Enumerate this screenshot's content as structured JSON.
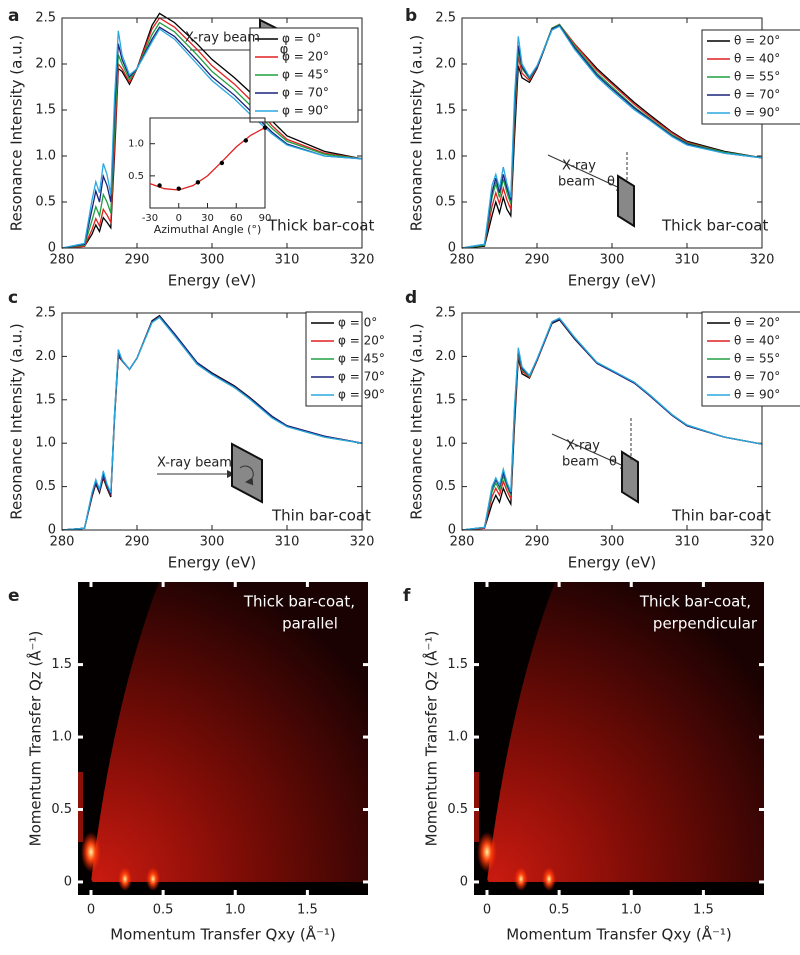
{
  "chart_data": [
    {
      "type": "line",
      "panel_label": "a",
      "x_label": "Energy (eV)",
      "y_label": "Resonance Intensity (a.u.)",
      "x": [
        280,
        283,
        284,
        284.5,
        285,
        285.5,
        286,
        286.5,
        287,
        287.5,
        288,
        289,
        290,
        292,
        293,
        295,
        298,
        300,
        303,
        305,
        308,
        310,
        315,
        320
      ],
      "series": [
        {
          "name": "φ = 0°",
          "color": "#000000",
          "values": [
            0,
            0.02,
            0.15,
            0.25,
            0.18,
            0.33,
            0.28,
            0.22,
            1.0,
            1.95,
            1.92,
            1.78,
            1.95,
            2.42,
            2.55,
            2.45,
            2.22,
            2.05,
            1.85,
            1.7,
            1.38,
            1.22,
            1.05,
            0.97
          ]
        },
        {
          "name": "φ = 20°",
          "color": "#e02020",
          "values": [
            0,
            0.02,
            0.2,
            0.32,
            0.24,
            0.42,
            0.36,
            0.28,
            1.1,
            2.0,
            1.95,
            1.8,
            1.95,
            2.38,
            2.5,
            2.4,
            2.16,
            1.98,
            1.78,
            1.62,
            1.33,
            1.18,
            1.03,
            0.97
          ]
        },
        {
          "name": "φ = 45°",
          "color": "#20a040",
          "values": [
            0,
            0.03,
            0.3,
            0.45,
            0.35,
            0.58,
            0.5,
            0.38,
            1.3,
            2.1,
            2.0,
            1.83,
            1.95,
            2.32,
            2.45,
            2.35,
            2.1,
            1.92,
            1.72,
            1.56,
            1.3,
            1.16,
            1.02,
            0.97
          ]
        },
        {
          "name": "φ = 70°",
          "color": "#1a237e",
          "values": [
            0,
            0.04,
            0.42,
            0.62,
            0.5,
            0.78,
            0.68,
            0.5,
            1.5,
            2.22,
            2.05,
            1.86,
            1.95,
            2.27,
            2.4,
            2.3,
            2.04,
            1.86,
            1.66,
            1.5,
            1.26,
            1.13,
            1.0,
            0.97
          ]
        },
        {
          "name": "φ = 90°",
          "color": "#29a8e0",
          "values": [
            0,
            0.05,
            0.52,
            0.72,
            0.6,
            0.92,
            0.8,
            0.58,
            1.62,
            2.36,
            2.1,
            1.88,
            1.95,
            2.24,
            2.38,
            2.27,
            2.0,
            1.82,
            1.62,
            1.46,
            1.24,
            1.12,
            1.0,
            0.97
          ]
        }
      ],
      "xlim": [
        280,
        320
      ],
      "ylim": [
        0,
        2.5
      ],
      "xticks": [
        280,
        290,
        300,
        310,
        320
      ],
      "yticks": [
        0,
        0.5,
        {
          "value": 1,
          "label": "1.0"
        },
        1.5,
        {
          "value": 2,
          "label": "2.0"
        },
        2.5
      ],
      "annotations": [
        "X-ray beam",
        "φ",
        "Thick bar-coat"
      ],
      "inset": {
        "type": "scatter",
        "x_label": "Azimuthal Angle (°)",
        "x": [
          -20,
          0,
          20,
          45,
          70,
          90
        ],
        "values": [
          0.35,
          0.3,
          0.4,
          0.7,
          1.05,
          1.25
        ],
        "color": "#000000",
        "fit": {
          "x": [
            -30,
            -15,
            0,
            15,
            30,
            45,
            60,
            75,
            90
          ],
          "values": [
            0.38,
            0.3,
            0.28,
            0.35,
            0.5,
            0.72,
            0.95,
            1.13,
            1.25
          ],
          "color": "#e02020"
        },
        "xlim": [
          -30,
          90
        ],
        "ylim": [
          0,
          1.4
        ],
        "xticks": [
          -30,
          0,
          30,
          60,
          90
        ],
        "yticks": [
          0.5,
          {
            "value": 1,
            "label": "1.0"
          }
        ]
      }
    },
    {
      "type": "line",
      "panel_label": "b",
      "x_label": "Energy (eV)",
      "y_label": "Resonance Intensity (a.u.)",
      "x": [
        280,
        283,
        284,
        284.5,
        285,
        285.5,
        286,
        286.5,
        287,
        287.5,
        288,
        289,
        290,
        292,
        293,
        295,
        298,
        300,
        303,
        305,
        308,
        310,
        315,
        320
      ],
      "series": [
        {
          "name": "θ = 20°",
          "color": "#000000",
          "values": [
            0,
            0.02,
            0.35,
            0.5,
            0.38,
            0.55,
            0.42,
            0.35,
            1.2,
            1.98,
            1.85,
            1.8,
            1.95,
            2.38,
            2.42,
            2.22,
            1.95,
            1.8,
            1.58,
            1.45,
            1.26,
            1.16,
            1.05,
            0.98
          ]
        },
        {
          "name": "θ = 40°",
          "color": "#e02020",
          "values": [
            0,
            0.03,
            0.45,
            0.6,
            0.48,
            0.65,
            0.52,
            0.42,
            1.35,
            2.08,
            1.9,
            1.82,
            1.96,
            2.39,
            2.43,
            2.22,
            1.93,
            1.78,
            1.56,
            1.43,
            1.25,
            1.15,
            1.04,
            0.98
          ]
        },
        {
          "name": "θ = 55°",
          "color": "#20a040",
          "values": [
            0,
            0.03,
            0.55,
            0.7,
            0.55,
            0.75,
            0.6,
            0.48,
            1.45,
            2.15,
            1.95,
            1.84,
            1.97,
            2.39,
            2.43,
            2.2,
            1.9,
            1.75,
            1.53,
            1.41,
            1.23,
            1.14,
            1.04,
            0.98
          ]
        },
        {
          "name": "θ = 70°",
          "color": "#1a237e",
          "values": [
            0,
            0.04,
            0.6,
            0.76,
            0.6,
            0.8,
            0.65,
            0.52,
            1.55,
            2.2,
            1.97,
            1.85,
            1.97,
            2.38,
            2.42,
            2.18,
            1.88,
            1.73,
            1.52,
            1.4,
            1.22,
            1.13,
            1.03,
            0.98
          ]
        },
        {
          "name": "θ = 90°",
          "color": "#29a8e0",
          "values": [
            0,
            0.04,
            0.68,
            0.8,
            0.65,
            0.88,
            0.7,
            0.55,
            1.65,
            2.3,
            2.0,
            1.86,
            1.98,
            2.37,
            2.41,
            2.16,
            1.86,
            1.71,
            1.5,
            1.39,
            1.21,
            1.12,
            1.03,
            0.98
          ]
        }
      ],
      "xlim": [
        280,
        320
      ],
      "ylim": [
        0,
        2.5
      ],
      "xticks": [
        280,
        290,
        300,
        310,
        320
      ],
      "yticks": [
        0,
        0.5,
        {
          "value": 1,
          "label": "1.0"
        },
        1.5,
        {
          "value": 2,
          "label": "2.0"
        },
        2.5
      ],
      "annotations": [
        "X-ray",
        "beam",
        "θ",
        "Thick bar-coat"
      ]
    },
    {
      "type": "line",
      "panel_label": "c",
      "x_label": "Energy (eV)",
      "y_label": "Resonance Intensity (a.u.)",
      "x": [
        280,
        283,
        284,
        284.5,
        285,
        285.5,
        286,
        286.5,
        287,
        287.5,
        288,
        289,
        290,
        292,
        293,
        295,
        298,
        300,
        303,
        305,
        308,
        310,
        315,
        320
      ],
      "series": [
        {
          "name": "φ = 0°",
          "color": "#000000",
          "values": [
            0,
            0.02,
            0.38,
            0.53,
            0.43,
            0.6,
            0.48,
            0.38,
            1.28,
            2.0,
            1.95,
            1.85,
            1.98,
            2.41,
            2.47,
            2.26,
            1.93,
            1.81,
            1.66,
            1.53,
            1.31,
            1.2,
            1.08,
            1.0
          ]
        },
        {
          "name": "φ = 20°",
          "color": "#e02020",
          "values": [
            0,
            0.02,
            0.4,
            0.55,
            0.45,
            0.62,
            0.5,
            0.4,
            1.3,
            2.02,
            1.95,
            1.85,
            1.98,
            2.4,
            2.46,
            2.25,
            1.92,
            1.8,
            1.65,
            1.52,
            1.3,
            1.2,
            1.08,
            1.0
          ]
        },
        {
          "name": "φ = 45°",
          "color": "#20a040",
          "values": [
            0,
            0.02,
            0.42,
            0.57,
            0.46,
            0.66,
            0.52,
            0.42,
            1.32,
            2.06,
            1.96,
            1.85,
            1.98,
            2.39,
            2.45,
            2.24,
            1.91,
            1.79,
            1.64,
            1.51,
            1.3,
            1.19,
            1.07,
            1.0
          ]
        },
        {
          "name": "φ = 70°",
          "color": "#1a237e",
          "values": [
            0,
            0.02,
            0.41,
            0.56,
            0.45,
            0.64,
            0.51,
            0.41,
            1.31,
            2.04,
            1.95,
            1.85,
            1.98,
            2.4,
            2.46,
            2.26,
            1.93,
            1.8,
            1.65,
            1.52,
            1.31,
            1.2,
            1.08,
            1.0
          ]
        },
        {
          "name": "φ = 90°",
          "color": "#29a8e0",
          "values": [
            0,
            0.02,
            0.43,
            0.58,
            0.47,
            0.68,
            0.53,
            0.43,
            1.33,
            2.08,
            1.96,
            1.85,
            1.98,
            2.39,
            2.45,
            2.24,
            1.91,
            1.79,
            1.64,
            1.51,
            1.29,
            1.19,
            1.07,
            1.0
          ]
        }
      ],
      "xlim": [
        280,
        320
      ],
      "ylim": [
        0,
        2.5
      ],
      "xticks": [
        280,
        290,
        300,
        310,
        320
      ],
      "yticks": [
        0,
        0.5,
        {
          "value": 1,
          "label": "1.0"
        },
        1.5,
        {
          "value": 2,
          "label": "2.0"
        },
        2.5
      ],
      "annotations": [
        "X-ray beam",
        "Thin bar-coat"
      ]
    },
    {
      "type": "line",
      "panel_label": "d",
      "x_label": "Energy (eV)",
      "y_label": "Resonance Intensity (a.u.)",
      "x": [
        280,
        283,
        284,
        284.5,
        285,
        285.5,
        286,
        286.5,
        287,
        287.5,
        288,
        289,
        290,
        292,
        293,
        295,
        298,
        300,
        303,
        305,
        308,
        310,
        315,
        320
      ],
      "series": [
        {
          "name": "θ = 20°",
          "color": "#000000",
          "values": [
            0,
            0.02,
            0.3,
            0.4,
            0.32,
            0.48,
            0.38,
            0.3,
            1.2,
            1.98,
            1.8,
            1.75,
            1.95,
            2.38,
            2.42,
            2.2,
            1.92,
            1.83,
            1.7,
            1.55,
            1.33,
            1.2,
            1.07,
            0.99
          ]
        },
        {
          "name": "θ = 40°",
          "color": "#e02020",
          "values": [
            0,
            0.02,
            0.38,
            0.48,
            0.4,
            0.56,
            0.45,
            0.36,
            1.28,
            2.02,
            1.83,
            1.76,
            1.95,
            2.39,
            2.43,
            2.21,
            1.92,
            1.83,
            1.69,
            1.55,
            1.32,
            1.2,
            1.07,
            0.99
          ]
        },
        {
          "name": "θ = 55°",
          "color": "#20a040",
          "values": [
            0,
            0.03,
            0.44,
            0.54,
            0.46,
            0.62,
            0.5,
            0.4,
            1.34,
            2.05,
            1.85,
            1.77,
            1.96,
            2.4,
            2.44,
            2.22,
            1.93,
            1.84,
            1.7,
            1.56,
            1.33,
            1.21,
            1.07,
            0.99
          ]
        },
        {
          "name": "θ = 70°",
          "color": "#1a237e",
          "values": [
            0,
            0.03,
            0.48,
            0.58,
            0.5,
            0.66,
            0.53,
            0.42,
            1.38,
            2.07,
            1.86,
            1.78,
            1.96,
            2.39,
            2.43,
            2.21,
            1.92,
            1.83,
            1.69,
            1.55,
            1.32,
            1.2,
            1.07,
            0.99
          ]
        },
        {
          "name": "θ = 90°",
          "color": "#29a8e0",
          "values": [
            0,
            0.03,
            0.5,
            0.6,
            0.52,
            0.7,
            0.55,
            0.44,
            1.42,
            2.1,
            1.88,
            1.78,
            1.97,
            2.4,
            2.44,
            2.22,
            1.93,
            1.84,
            1.7,
            1.56,
            1.33,
            1.21,
            1.07,
            0.99
          ]
        }
      ],
      "xlim": [
        280,
        320
      ],
      "ylim": [
        0,
        2.5
      ],
      "xticks": [
        280,
        290,
        300,
        310,
        320
      ],
      "yticks": [
        0,
        0.5,
        {
          "value": 1,
          "label": "1.0"
        },
        1.5,
        {
          "value": 2,
          "label": "2.0"
        },
        2.5
      ],
      "annotations": [
        "X-ray",
        "beam",
        "θ",
        "Thin bar-coat"
      ]
    },
    {
      "type": "heatmap",
      "panel_label": "e",
      "x_label": "Momentum Transfer Qxy (Å⁻¹)",
      "y_label": "Momentum Transfer Qz (Å⁻¹)",
      "xlim": [
        -0.09,
        1.92
      ],
      "ylim": [
        -0.09,
        2.07
      ],
      "xticks": [
        0,
        0.5,
        {
          "value": 1,
          "label": "1.0"
        },
        1.5
      ],
      "yticks": [
        0,
        0.5,
        {
          "value": 1,
          "label": "1.0"
        },
        1.5
      ],
      "annotations": [
        "Thick bar-coat,",
        "parallel"
      ]
    },
    {
      "type": "heatmap",
      "panel_label": "f",
      "x_label": "Momentum Transfer Qxy (Å⁻¹)",
      "y_label": "Momentum Transfer Qz (Å⁻¹)",
      "xlim": [
        -0.09,
        1.92
      ],
      "ylim": [
        -0.09,
        2.07
      ],
      "xticks": [
        0,
        0.5,
        {
          "value": 1,
          "label": "1.0"
        },
        1.5
      ],
      "yticks": [
        0,
        0.5,
        {
          "value": 1,
          "label": "1.0"
        },
        1.5
      ],
      "annotations": [
        "Thick bar-coat,",
        "perpendicular"
      ]
    }
  ]
}
